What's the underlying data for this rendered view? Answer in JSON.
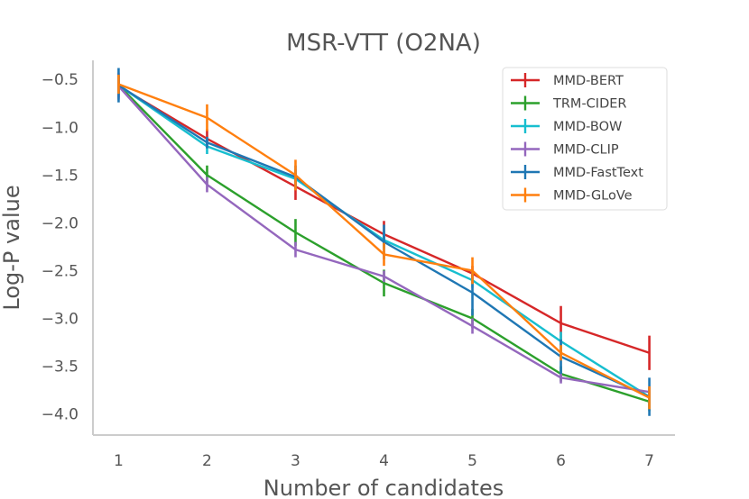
{
  "chart_data": {
    "type": "line",
    "title": "MSR-VTT (O2NA)",
    "xlabel": "Number of candidates",
    "ylabel": "Log-P value",
    "x": [
      1,
      2,
      3,
      4,
      5,
      6,
      7
    ],
    "xlim": [
      0.71,
      7.29
    ],
    "ylim": [
      -4.22,
      -0.3
    ],
    "yticks": [
      -0.5,
      -1.0,
      -1.5,
      -2.0,
      -2.5,
      -3.0,
      -3.5,
      -4.0
    ],
    "ytick_labels": [
      "−0.5",
      "−1.0",
      "−1.5",
      "−2.0",
      "−2.5",
      "−3.0",
      "−3.5",
      "−4.0"
    ],
    "grid": false,
    "legend_position": "top-right",
    "series": [
      {
        "name": "MMD-BERT",
        "color": "#d62728",
        "values": [
          -0.57,
          -1.12,
          -1.62,
          -2.12,
          -2.53,
          -3.05,
          -3.36
        ],
        "errors": [
          0.12,
          0.1,
          0.14,
          0.14,
          0.08,
          0.18,
          0.18
        ]
      },
      {
        "name": "TRM-CIDER",
        "color": "#2ca02c",
        "values": [
          -0.56,
          -1.5,
          -2.1,
          -2.63,
          -3.0,
          -3.58,
          -3.87
        ],
        "errors": [
          0.1,
          0.1,
          0.14,
          0.14,
          0.1,
          0.08,
          0.1
        ]
      },
      {
        "name": "MMD-BOW",
        "color": "#17becf",
        "values": [
          -0.56,
          -1.2,
          -1.54,
          -2.18,
          -2.6,
          -3.24,
          -3.82
        ],
        "errors": [
          0.1,
          0.08,
          0.1,
          0.1,
          0.08,
          0.1,
          0.1
        ]
      },
      {
        "name": "MMD-CLIP",
        "color": "#9467bd",
        "values": [
          -0.57,
          -1.6,
          -2.28,
          -2.56,
          -3.08,
          -3.62,
          -3.77
        ],
        "errors": [
          0.14,
          0.08,
          0.08,
          0.06,
          0.08,
          0.06,
          0.05
        ]
      },
      {
        "name": "MMD-FastText",
        "color": "#1f77b4",
        "values": [
          -0.56,
          -1.16,
          -1.52,
          -2.2,
          -2.73,
          -3.4,
          -3.82
        ],
        "errors": [
          0.18,
          0.06,
          0.12,
          0.18,
          0.24,
          0.18,
          0.2
        ]
      },
      {
        "name": "MMD-GLoVe",
        "color": "#ff7f0e",
        "values": [
          -0.55,
          -0.9,
          -1.5,
          -2.33,
          -2.5,
          -3.36,
          -3.83
        ],
        "errors": [
          0.1,
          0.14,
          0.16,
          0.12,
          0.14,
          0.08,
          0.12
        ]
      }
    ]
  }
}
